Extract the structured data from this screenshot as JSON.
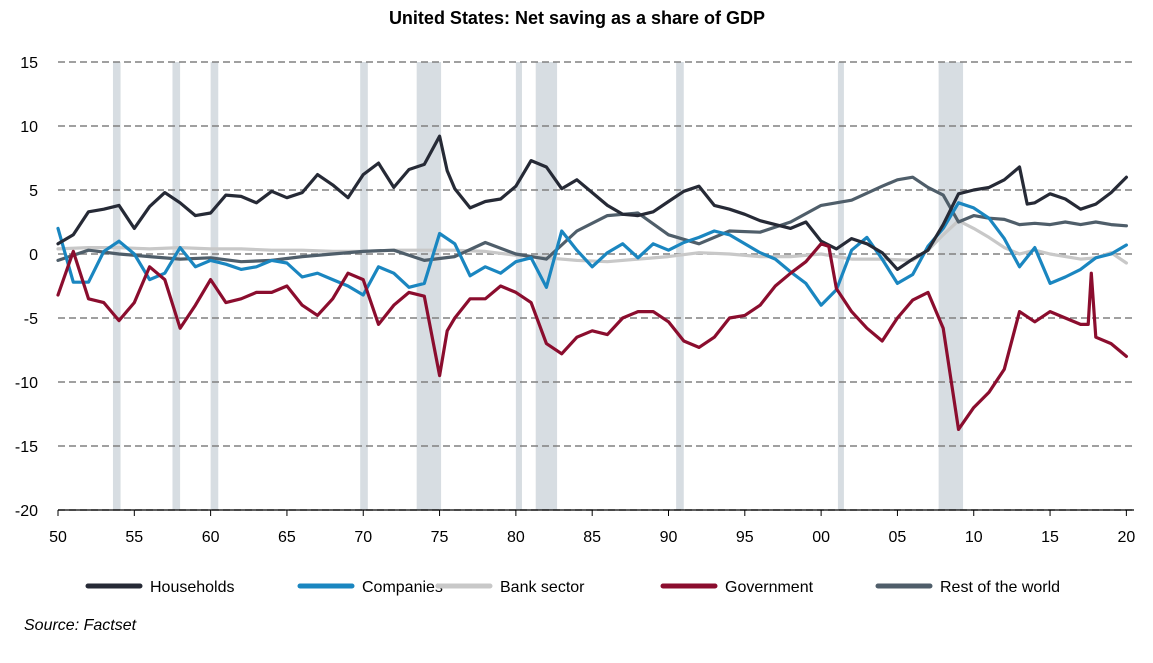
{
  "chart_data": {
    "type": "line",
    "title": "United States: Net saving as a share of GDP",
    "source": "Source: Factset",
    "xlim": [
      1950,
      2020.5
    ],
    "ylim": [
      -20,
      15
    ],
    "yticks": [
      15,
      10,
      5,
      0,
      -5,
      -10,
      -15,
      -20
    ],
    "ytick_labels": [
      "15",
      "10",
      "5",
      "0",
      "-5",
      "-10",
      "-15",
      "-20"
    ],
    "xticks": [
      1950,
      1955,
      1960,
      1965,
      1970,
      1975,
      1980,
      1985,
      1990,
      1995,
      2000,
      2005,
      2010,
      2015,
      2020
    ],
    "xtick_labels": [
      "50",
      "55",
      "60",
      "65",
      "70",
      "75",
      "80",
      "85",
      "90",
      "95",
      "00",
      "05",
      "10",
      "15",
      "20"
    ],
    "grid": "horizontal dashed",
    "legend_position": "bottom",
    "recessions": [
      [
        1953.6,
        1954.1
      ],
      [
        1957.5,
        1958.0
      ],
      [
        1960.0,
        1960.5
      ],
      [
        1969.8,
        1970.3
      ],
      [
        1973.5,
        1975.1
      ],
      [
        1980.0,
        1980.4
      ],
      [
        1981.3,
        1982.7
      ],
      [
        1990.5,
        1991.0
      ],
      [
        2001.1,
        2001.4
      ],
      [
        2007.7,
        2009.3
      ]
    ],
    "colors": {
      "Households": "#262a36",
      "Companies": "#1a86c0",
      "Bank sector": "#c8c8c8",
      "Government": "#8b0d2e",
      "Rest of the world": "#4f5e6a",
      "recession": "#d7dde2",
      "grid": "#808080"
    },
    "series": [
      {
        "name": "Households",
        "x": [
          1950,
          1951,
          1952,
          1953,
          1954,
          1955,
          1956,
          1957,
          1958,
          1959,
          1960,
          1961,
          1962,
          1963,
          1964,
          1965,
          1966,
          1967,
          1968,
          1969,
          1970,
          1971,
          1972,
          1973,
          1974,
          1975,
          1975.5,
          1976,
          1977,
          1978,
          1979,
          1980,
          1981,
          1982,
          1983,
          1984,
          1985,
          1986,
          1987,
          1988,
          1989,
          1990,
          1991,
          1992,
          1993,
          1994,
          1995,
          1996,
          1997,
          1998,
          1999,
          2000,
          2001,
          2002,
          2003,
          2004,
          2005,
          2006,
          2007,
          2008,
          2009,
          2010,
          2011,
          2012,
          2013,
          2013.5,
          2014,
          2015,
          2016,
          2017,
          2018,
          2019,
          2020
        ],
        "values": [
          0.8,
          1.5,
          3.3,
          3.5,
          3.8,
          2.0,
          3.7,
          4.8,
          4.0,
          3.0,
          3.2,
          4.6,
          4.5,
          4.0,
          4.9,
          4.4,
          4.8,
          6.2,
          5.4,
          4.4,
          6.2,
          7.1,
          5.2,
          6.6,
          7.0,
          9.2,
          6.5,
          5.1,
          3.6,
          4.1,
          4.3,
          5.3,
          7.3,
          6.8,
          5.1,
          5.8,
          4.8,
          3.8,
          3.1,
          3.0,
          3.3,
          4.1,
          4.9,
          5.3,
          3.8,
          3.5,
          3.1,
          2.6,
          2.3,
          2.0,
          2.5,
          1.0,
          0.4,
          1.2,
          0.8,
          0.1,
          -1.2,
          -0.4,
          0.3,
          2.3,
          4.7,
          5.0,
          5.2,
          5.8,
          6.8,
          3.9,
          4.0,
          4.7,
          4.3,
          3.5,
          3.9,
          4.8,
          6.0
        ]
      },
      {
        "name": "Companies",
        "x": [
          1950,
          1951,
          1952,
          1953,
          1954,
          1955,
          1956,
          1957,
          1958,
          1959,
          1960,
          1961,
          1962,
          1963,
          1964,
          1965,
          1966,
          1967,
          1968,
          1969,
          1970,
          1971,
          1972,
          1973,
          1974,
          1975,
          1976,
          1977,
          1978,
          1979,
          1980,
          1981,
          1982,
          1983,
          1984,
          1985,
          1986,
          1987,
          1988,
          1989,
          1990,
          1991,
          1992,
          1993,
          1994,
          1995,
          1996,
          1997,
          1998,
          1999,
          2000,
          2001,
          2002,
          2003,
          2004,
          2005,
          2006,
          2007,
          2008,
          2009,
          2010,
          2011,
          2012,
          2013,
          2014,
          2015,
          2016,
          2017,
          2018,
          2019,
          2020
        ],
        "values": [
          2.0,
          -2.2,
          -2.2,
          0.2,
          1.0,
          0.0,
          -2.0,
          -1.5,
          0.5,
          -1.0,
          -0.5,
          -0.8,
          -1.2,
          -1.0,
          -0.5,
          -0.7,
          -1.8,
          -1.5,
          -2.0,
          -2.5,
          -3.2,
          -1.0,
          -1.5,
          -2.6,
          -2.3,
          1.6,
          0.8,
          -1.7,
          -1.0,
          -1.5,
          -0.6,
          -0.3,
          -2.6,
          1.8,
          0.3,
          -1.0,
          0.1,
          0.8,
          -0.3,
          0.8,
          0.3,
          0.9,
          1.3,
          1.8,
          1.5,
          0.8,
          0.1,
          -0.4,
          -1.4,
          -2.3,
          -4.0,
          -2.8,
          0.3,
          1.3,
          -0.4,
          -2.3,
          -1.6,
          0.6,
          2.0,
          4.0,
          3.6,
          2.8,
          1.2,
          -1.0,
          0.5,
          -2.3,
          -1.8,
          -1.2,
          -0.3,
          0.0,
          0.7
        ]
      },
      {
        "name": "Bank sector",
        "x": [
          1950,
          1952,
          1954,
          1956,
          1958,
          1960,
          1962,
          1964,
          1966,
          1968,
          1970,
          1972,
          1974,
          1976,
          1978,
          1980,
          1982,
          1984,
          1986,
          1988,
          1990,
          1992,
          1994,
          1996,
          1998,
          2000,
          2002,
          2004,
          2006,
          2007,
          2008,
          2009,
          2010,
          2011,
          2012,
          2013,
          2014,
          2015,
          2016,
          2017,
          2018,
          2019,
          2020
        ],
        "values": [
          0.4,
          0.5,
          0.5,
          0.4,
          0.5,
          0.4,
          0.4,
          0.3,
          0.3,
          0.2,
          0.2,
          0.3,
          0.3,
          0.3,
          0.2,
          -0.1,
          -0.3,
          -0.5,
          -0.6,
          -0.4,
          -0.2,
          0.1,
          0.0,
          -0.2,
          -0.2,
          0.0,
          -0.4,
          -0.4,
          -0.5,
          0.3,
          1.5,
          2.6,
          2.0,
          1.3,
          0.5,
          0.0,
          0.3,
          0.0,
          -0.2,
          -0.4,
          -0.3,
          0.1,
          -0.7
        ]
      },
      {
        "name": "Government",
        "x": [
          1950,
          1951,
          1952,
          1953,
          1954,
          1955,
          1956,
          1957,
          1958,
          1959,
          1960,
          1961,
          1962,
          1963,
          1964,
          1965,
          1966,
          1967,
          1968,
          1969,
          1970,
          1971,
          1972,
          1973,
          1974,
          1975,
          1975.5,
          1976,
          1977,
          1978,
          1979,
          1980,
          1981,
          1982,
          1983,
          1984,
          1985,
          1986,
          1987,
          1988,
          1989,
          1990,
          1991,
          1992,
          1993,
          1994,
          1995,
          1996,
          1997,
          1998,
          1999,
          2000,
          2000.5,
          2001,
          2002,
          2003,
          2004,
          2005,
          2006,
          2007,
          2008,
          2009,
          2010,
          2011,
          2012,
          2013,
          2014,
          2015,
          2016,
          2017,
          2017.5,
          2017.7,
          2018,
          2019,
          2020
        ],
        "values": [
          -3.2,
          0.2,
          -3.5,
          -3.8,
          -5.2,
          -3.8,
          -1.0,
          -2.0,
          -5.8,
          -4.0,
          -2.0,
          -3.8,
          -3.5,
          -3.0,
          -3.0,
          -2.5,
          -4.0,
          -4.8,
          -3.5,
          -1.5,
          -2.0,
          -5.5,
          -4.0,
          -3.0,
          -3.3,
          -9.5,
          -6.0,
          -5.0,
          -3.5,
          -3.5,
          -2.5,
          -3.0,
          -3.8,
          -7.0,
          -7.8,
          -6.5,
          -6.0,
          -6.3,
          -5.0,
          -4.5,
          -4.5,
          -5.3,
          -6.8,
          -7.3,
          -6.5,
          -5.0,
          -4.8,
          -4.0,
          -2.5,
          -1.5,
          -0.6,
          0.8,
          0.6,
          -2.7,
          -4.5,
          -5.8,
          -6.8,
          -5.0,
          -3.6,
          -3.0,
          -5.8,
          -13.7,
          -12.0,
          -10.8,
          -9.0,
          -4.5,
          -5.3,
          -4.5,
          -5.0,
          -5.5,
          -5.5,
          -1.5,
          -6.5,
          -7.0,
          -8.0
        ]
      },
      {
        "name": "Rest of the world",
        "x": [
          1950,
          1952,
          1954,
          1956,
          1958,
          1960,
          1962,
          1964,
          1966,
          1968,
          1970,
          1972,
          1974,
          1976,
          1978,
          1980,
          1982,
          1984,
          1986,
          1988,
          1990,
          1992,
          1994,
          1996,
          1998,
          2000,
          2002,
          2004,
          2005,
          2006,
          2007,
          2008,
          2009,
          2010,
          2011,
          2012,
          2013,
          2014,
          2015,
          2016,
          2017,
          2018,
          2019,
          2020
        ],
        "values": [
          -0.5,
          0.3,
          0.0,
          -0.2,
          -0.4,
          -0.3,
          -0.6,
          -0.5,
          -0.2,
          0.0,
          0.2,
          0.3,
          -0.5,
          -0.2,
          0.9,
          0.0,
          -0.4,
          1.8,
          3.0,
          3.2,
          1.5,
          0.8,
          1.8,
          1.7,
          2.5,
          3.8,
          4.2,
          5.3,
          5.8,
          6.0,
          5.2,
          4.6,
          2.5,
          3.0,
          2.8,
          2.7,
          2.3,
          2.4,
          2.3,
          2.5,
          2.3,
          2.5,
          2.3,
          2.2
        ]
      }
    ]
  }
}
